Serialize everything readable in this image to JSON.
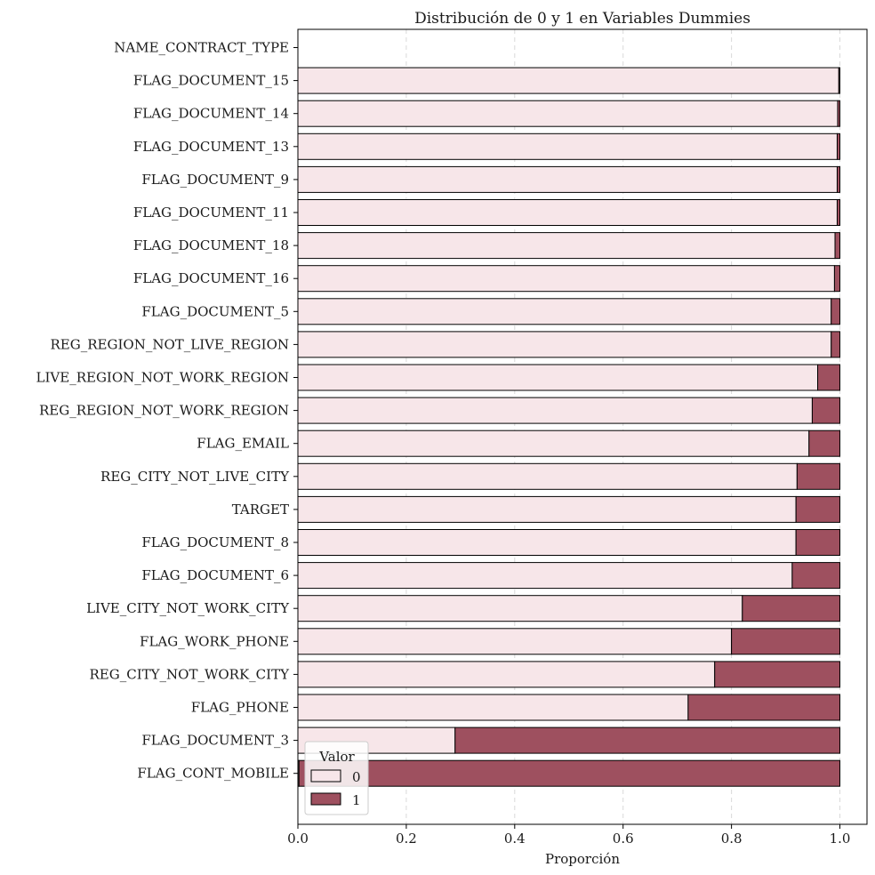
{
  "chart_data": {
    "type": "bar",
    "orientation": "horizontal",
    "stacked": true,
    "title": "Distribución de 0 y 1 en Variables Dummies",
    "xlabel": "Proporción",
    "ylabel": "",
    "xlim": [
      0,
      1.05
    ],
    "xticks": [
      "0.0",
      "0.2",
      "0.4",
      "0.6",
      "0.8",
      "1.0"
    ],
    "grid": "x, dashed",
    "categories": [
      "NAME_CONTRACT_TYPE",
      "FLAG_DOCUMENT_15",
      "FLAG_DOCUMENT_14",
      "FLAG_DOCUMENT_13",
      "FLAG_DOCUMENT_9",
      "FLAG_DOCUMENT_11",
      "FLAG_DOCUMENT_18",
      "FLAG_DOCUMENT_16",
      "FLAG_DOCUMENT_5",
      "REG_REGION_NOT_LIVE_REGION",
      "LIVE_REGION_NOT_WORK_REGION",
      "REG_REGION_NOT_WORK_REGION",
      "FLAG_EMAIL",
      "REG_CITY_NOT_LIVE_CITY",
      "TARGET",
      "FLAG_DOCUMENT_8",
      "FLAG_DOCUMENT_6",
      "LIVE_CITY_NOT_WORK_CITY",
      "FLAG_WORK_PHONE",
      "REG_CITY_NOT_WORK_CITY",
      "FLAG_PHONE",
      "FLAG_DOCUMENT_3",
      "FLAG_CONT_MOBILE"
    ],
    "series": [
      {
        "name": "0",
        "color": "#f7e6e9",
        "values": [
          0,
          0.998,
          0.996,
          0.995,
          0.995,
          0.995,
          0.991,
          0.99,
          0.984,
          0.984,
          0.959,
          0.949,
          0.943,
          0.921,
          0.919,
          0.919,
          0.912,
          0.82,
          0.8,
          0.769,
          0.72,
          0.29,
          0.002
        ]
      },
      {
        "name": "1",
        "color": "#9e505f",
        "values": [
          0,
          0.002,
          0.004,
          0.005,
          0.005,
          0.005,
          0.009,
          0.01,
          0.016,
          0.016,
          0.041,
          0.051,
          0.057,
          0.079,
          0.081,
          0.081,
          0.088,
          0.18,
          0.2,
          0.231,
          0.28,
          0.71,
          0.998
        ]
      }
    ],
    "legend": {
      "title": "Valor",
      "position": "lower-left"
    }
  }
}
